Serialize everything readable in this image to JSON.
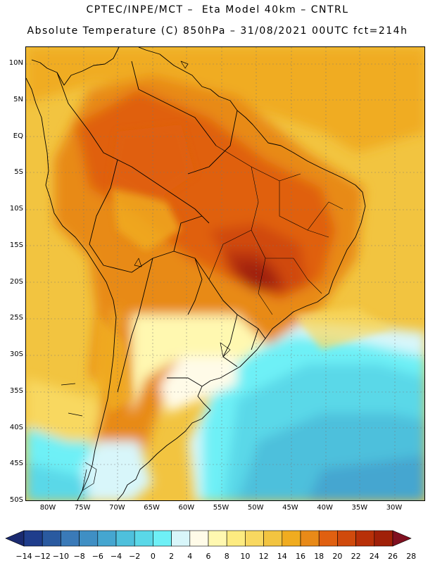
{
  "title_line1": "CPTEC/INPE/MCT –  Eta Model 40km – CNTRL",
  "title_line2": "Absolute Temperature (C) 850hPa – 31/08/2021 00UTC fct=214h",
  "lat_labels": [
    "10N",
    "5N",
    "EQ",
    "5S",
    "10S",
    "15S",
    "20S",
    "25S",
    "30S",
    "35S",
    "40S",
    "45S",
    "50S"
  ],
  "lon_labels": [
    "80W",
    "75W",
    "70W",
    "65W",
    "60W",
    "55W",
    "50W",
    "45W",
    "40W",
    "35W",
    "30W"
  ],
  "colorbar": {
    "labels": [
      "-14",
      "-12",
      "-10",
      "-8",
      "-6",
      "-4",
      "-2",
      "0",
      "2",
      "4",
      "6",
      "8",
      "10",
      "12",
      "14",
      "16",
      "18",
      "20",
      "22",
      "24",
      "26",
      "28"
    ],
    "colors": [
      "#1f3d8c",
      "#2a5aa0",
      "#3a7ab8",
      "#3f8fc4",
      "#45a6d0",
      "#4ec0dc",
      "#5ad8e8",
      "#6ef0f6",
      "#d8f6fa",
      "#fffbe8",
      "#fff8b0",
      "#fdeb80",
      "#f8d860",
      "#f2c440",
      "#f0ac20",
      "#e88a18",
      "#e06010",
      "#d04a0c",
      "#b83008",
      "#a02008"
    ],
    "under_color": "#1a2a70",
    "over_color": "#801020"
  }
}
